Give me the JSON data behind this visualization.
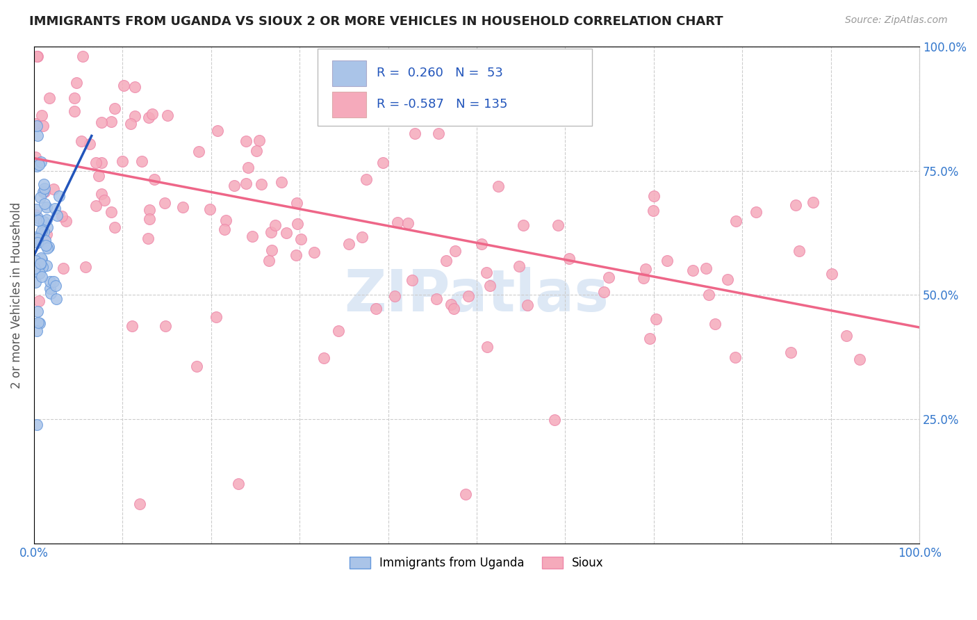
{
  "title": "IMMIGRANTS FROM UGANDA VS SIOUX 2 OR MORE VEHICLES IN HOUSEHOLD CORRELATION CHART",
  "source": "Source: ZipAtlas.com",
  "ylabel": "2 or more Vehicles in Household",
  "background_color": "#ffffff",
  "uganda_color": "#aac4e8",
  "sioux_color": "#f5aabb",
  "uganda_line_color": "#2255bb",
  "sioux_line_color": "#ee6688",
  "uganda_edge_color": "#6699dd",
  "sioux_edge_color": "#ee88aa",
  "legend_text1": "R =  0.260   N =  53",
  "legend_text2": "R = -0.587   N = 135",
  "watermark": "ZIPatlas",
  "xlim": [
    0,
    1
  ],
  "ylim": [
    0,
    1
  ],
  "uganda_trendline_x": [
    0.0,
    0.065
  ],
  "uganda_trendline_y": [
    0.58,
    0.82
  ],
  "sioux_trendline_x": [
    0.0,
    1.0
  ],
  "sioux_trendline_y": [
    0.775,
    0.435
  ]
}
